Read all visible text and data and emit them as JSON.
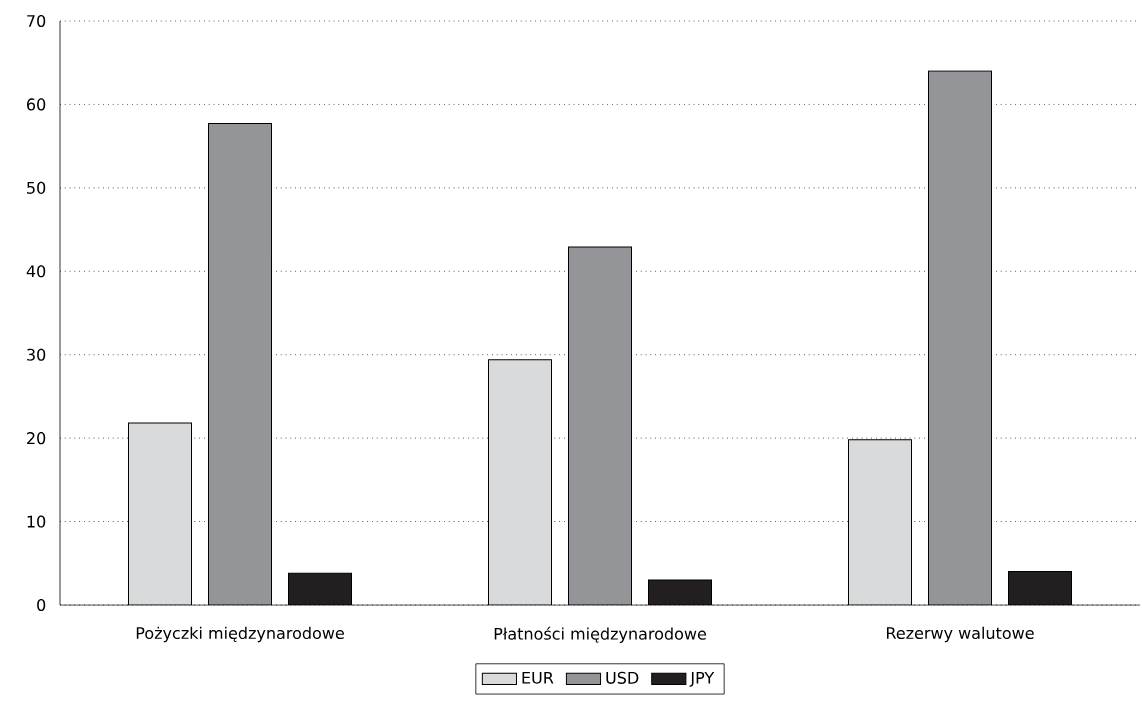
{
  "chart_data": {
    "type": "bar",
    "categories": [
      "Pożyczki międzynarodowe",
      "Płatności międzynarodowe",
      "Rezerwy walutowe"
    ],
    "series": [
      {
        "name": "EUR",
        "color": "#d9dadb",
        "values": [
          21.8,
          29.4,
          19.8
        ]
      },
      {
        "name": "USD",
        "color": "#939598",
        "values": [
          57.7,
          42.9,
          64.0
        ]
      },
      {
        "name": "JPY",
        "color": "#231f20",
        "values": [
          3.8,
          3.0,
          4.0
        ]
      }
    ],
    "ylim": [
      0,
      70
    ],
    "yticks": [
      0,
      10,
      20,
      30,
      40,
      50,
      60,
      70
    ],
    "grid": "y",
    "legend": "bottom"
  }
}
